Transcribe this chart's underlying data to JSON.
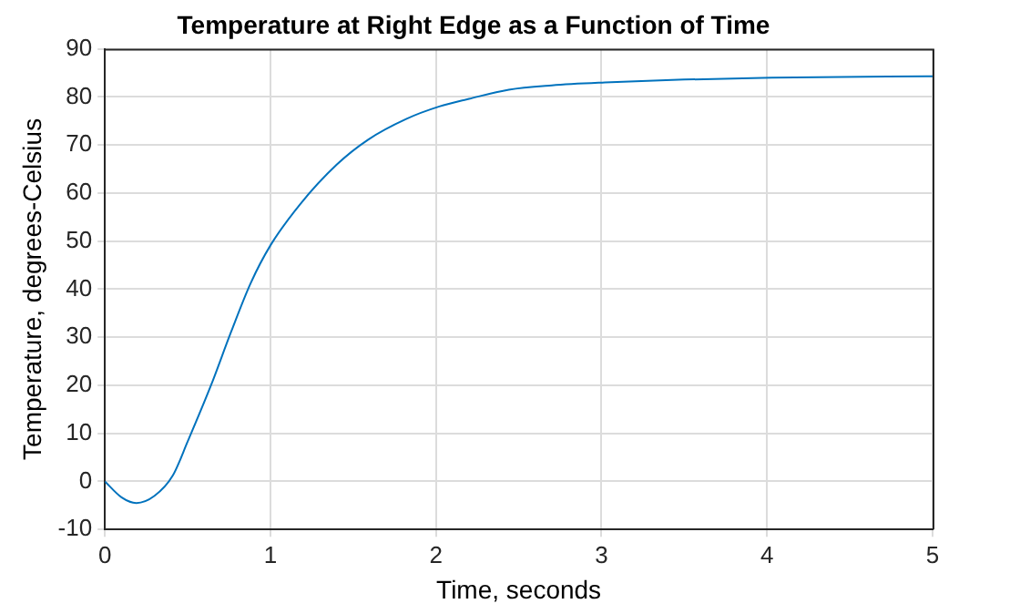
{
  "chart_data": {
    "type": "line",
    "title": "Temperature at Right Edge as a Function of Time",
    "xlabel": "Time, seconds",
    "ylabel": "Temperature, degrees-Celsius",
    "x": [
      0,
      0.1,
      0.19,
      0.3,
      0.41,
      0.5,
      0.64,
      0.76,
      0.88,
      1.0,
      1.18,
      1.4,
      1.59,
      1.82,
      2.02,
      2.2,
      2.44,
      2.7,
      3.02,
      3.5,
      4.03,
      5
    ],
    "series": [
      {
        "color": "#0072bd",
        "values": [
          0,
          -3.3,
          -4.5,
          -3.0,
          1.2,
          8.3,
          19.9,
          30.9,
          41.2,
          49.1,
          57.7,
          65.9,
          71.1,
          75.4,
          78.0,
          79.6,
          81.5,
          82.4,
          83.0,
          83.6,
          84.0,
          84.3
        ]
      }
    ],
    "xlim": [
      0,
      5
    ],
    "xticks": [
      0,
      1,
      2,
      3,
      4,
      5
    ],
    "ylim": [
      -10,
      90
    ],
    "yticks": [
      -10,
      0,
      10,
      20,
      30,
      40,
      50,
      60,
      70,
      80,
      90
    ],
    "grid": true,
    "legend": false,
    "marker": "none",
    "line_style": "solid"
  }
}
